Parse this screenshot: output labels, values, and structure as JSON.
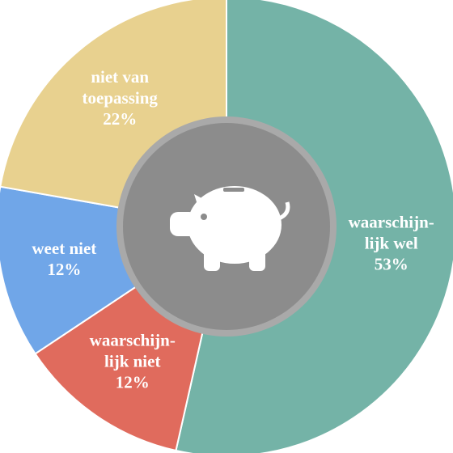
{
  "chart_data": {
    "type": "donut",
    "categories": [
      [
        "waarschijn-",
        "lijk wel"
      ],
      [
        "waarschijn-",
        "lijk niet"
      ],
      [
        "weet niet"
      ],
      [
        "niet van",
        "toepassing"
      ]
    ],
    "values": [
      53,
      12,
      12,
      22
    ],
    "value_labels": [
      "53%",
      "12%",
      "12%",
      "22%"
    ],
    "colors": [
      "#74b3a7",
      "#e06b5d",
      "#70a6e8",
      "#e8d18f"
    ]
  }
}
